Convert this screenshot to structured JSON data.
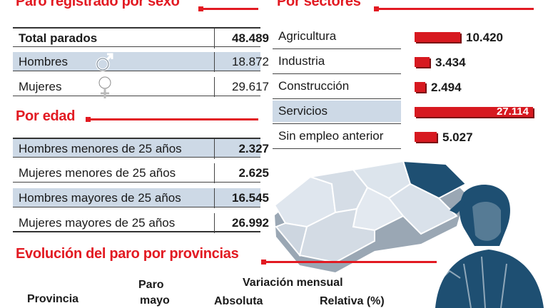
{
  "sexo": {
    "title": "Paro registrado por sexo",
    "rows": [
      {
        "label": "Total parados",
        "value": "48.489"
      },
      {
        "label": "Hombres",
        "value": "18.872"
      },
      {
        "label": "Mujeres",
        "value": "29.617"
      }
    ]
  },
  "edad": {
    "title": "Por edad",
    "rows": [
      {
        "label": "Hombres menores de 25 años",
        "value": "2.327"
      },
      {
        "label": "Mujeres menores de 25 años",
        "value": "2.625"
      },
      {
        "label": "Hombres mayores de 25 años",
        "value": "16.545"
      },
      {
        "label": "Mujeres mayores de 25 años",
        "value": "26.992"
      }
    ]
  },
  "sectores": {
    "title": "Por sectores"
  },
  "provincias": {
    "title": "Evolución del paro por provincias",
    "headers": {
      "provincia": "Provincia",
      "paro": "Paro",
      "mayo": "mayo",
      "variacion": "Variación mensual",
      "absoluta": "Absoluta",
      "relativa": "Relativa (%)"
    }
  },
  "icons": [
    "male-symbol-icon",
    "female-symbol-icon",
    "andalusia-map",
    "person-illustration"
  ],
  "colors": {
    "accent": "#e21a22",
    "row_blue": "#cdd9e6",
    "bar": "#d71920"
  },
  "chart_data": {
    "type": "bar",
    "title": "Por sectores",
    "categories": [
      "Agricultura",
      "Industria",
      "Construcción",
      "Servicios",
      "Sin empleo anterior"
    ],
    "values": [
      10420,
      3434,
      2494,
      27114,
      5027
    ],
    "value_labels": [
      "10.420",
      "3.434",
      "2.494",
      "27.114",
      "5.027"
    ],
    "orientation": "horizontal",
    "grid": false,
    "legend": "none"
  }
}
